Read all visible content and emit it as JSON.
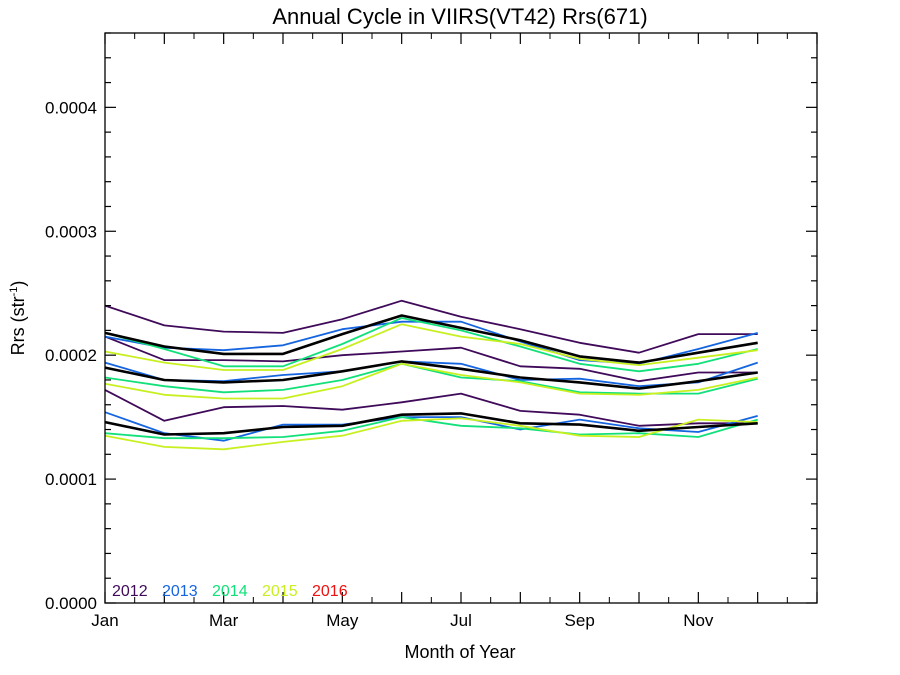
{
  "chart_data": {
    "type": "line",
    "title": "Annual Cycle in VIIRS(VT42) Rrs(671)",
    "xlabel": "Month of Year",
    "ylabel_main": "Rrs (str",
    "ylabel_sup": "-1",
    "ylabel_close": ")",
    "xlim": [
      1,
      13
    ],
    "ylim": [
      0,
      0.00046
    ],
    "x_ticks": [
      {
        "value": 1,
        "label": "Jan"
      },
      {
        "value": 3,
        "label": "Mar"
      },
      {
        "value": 5,
        "label": "May"
      },
      {
        "value": 7,
        "label": "Jul"
      },
      {
        "value": 9,
        "label": "Sep"
      },
      {
        "value": 11,
        "label": "Nov"
      }
    ],
    "y_ticks": [
      {
        "value": 0.0,
        "label": "0.0000"
      },
      {
        "value": 0.0001,
        "label": "0.0001"
      },
      {
        "value": 0.0002,
        "label": "0.0002"
      },
      {
        "value": 0.0003,
        "label": "0.0003"
      },
      {
        "value": 0.0004,
        "label": "0.0004"
      }
    ],
    "grid": false,
    "legend_placement": "bottom-left",
    "legend": [
      {
        "label": "2012",
        "color": "#3f0a5a"
      },
      {
        "label": "2013",
        "color": "#1565e0"
      },
      {
        "label": "2014",
        "color": "#12e07a"
      },
      {
        "label": "2015",
        "color": "#c8f020"
      },
      {
        "label": "2016",
        "color": "#ee1111"
      }
    ],
    "x": [
      1,
      2,
      3,
      4,
      5,
      6,
      7,
      8,
      9,
      10,
      11,
      12
    ],
    "series": [
      {
        "color": "#3f0a5a",
        "values": [
          0.00024,
          0.000224,
          0.000219,
          0.000218,
          0.000229,
          0.000244,
          0.000231,
          0.000221,
          0.00021,
          0.000202,
          0.000217,
          0.000217
        ]
      },
      {
        "color": "#3f0a5a",
        "values": [
          0.000215,
          0.000196,
          0.000196,
          0.000195,
          0.0002,
          0.000203,
          0.000206,
          0.000191,
          0.000189,
          0.000179,
          0.000186,
          0.000186
        ]
      },
      {
        "color": "#3f0a5a",
        "values": [
          0.000172,
          0.000147,
          0.000158,
          0.000159,
          0.000156,
          0.000162,
          0.000169,
          0.000155,
          0.000152,
          0.000143,
          0.000145,
          0.000145
        ]
      },
      {
        "color": "#1565e0",
        "values": [
          0.000215,
          0.000206,
          0.000204,
          0.000208,
          0.000221,
          0.000227,
          0.000227,
          0.000211,
          0.000196,
          0.000193,
          0.000205,
          0.000218
        ]
      },
      {
        "color": "#1565e0",
        "values": [
          0.000194,
          0.00018,
          0.000179,
          0.000184,
          0.000187,
          0.000195,
          0.000193,
          0.00018,
          0.000181,
          0.000175,
          0.000178,
          0.000194
        ]
      },
      {
        "color": "#1565e0",
        "values": [
          0.000154,
          0.000137,
          0.000131,
          0.000144,
          0.000144,
          0.00015,
          0.00015,
          0.00014,
          0.000148,
          0.000141,
          0.000138,
          0.000151
        ]
      },
      {
        "color": "#12e07a",
        "values": [
          0.000218,
          0.000205,
          0.000191,
          0.000191,
          0.000209,
          0.00023,
          0.00022,
          0.000207,
          0.000193,
          0.000187,
          0.000193,
          0.000205
        ]
      },
      {
        "color": "#12e07a",
        "values": [
          0.000182,
          0.000175,
          0.00017,
          0.000172,
          0.00018,
          0.000193,
          0.000182,
          0.000179,
          0.00017,
          0.000169,
          0.000169,
          0.000181
        ]
      },
      {
        "color": "#12e07a",
        "values": [
          0.000137,
          0.000133,
          0.000133,
          0.000134,
          0.000139,
          0.00015,
          0.000143,
          0.000141,
          0.000136,
          0.000137,
          0.000134,
          0.000148
        ]
      },
      {
        "color": "#c8f020",
        "values": [
          0.000203,
          0.000194,
          0.000188,
          0.000188,
          0.000205,
          0.000225,
          0.000215,
          0.000209,
          0.000197,
          0.000192,
          0.000198,
          0.000204
        ]
      },
      {
        "color": "#c8f020",
        "values": [
          0.000177,
          0.000168,
          0.000165,
          0.000165,
          0.000175,
          0.000193,
          0.000184,
          0.000178,
          0.000169,
          0.000168,
          0.000172,
          0.000182
        ]
      },
      {
        "color": "#c8f020",
        "values": [
          0.000135,
          0.000126,
          0.000124,
          0.00013,
          0.000135,
          0.000147,
          0.000149,
          0.000143,
          0.000135,
          0.000134,
          0.000148,
          0.000146
        ]
      },
      {
        "color": "#000000",
        "width": 2.6,
        "values": [
          0.000218,
          0.000207,
          0.000201,
          0.000201,
          0.000217,
          0.000232,
          0.000222,
          0.000212,
          0.000199,
          0.000194,
          0.000202,
          0.00021
        ]
      },
      {
        "color": "#000000",
        "width": 2.6,
        "values": [
          0.00019,
          0.00018,
          0.000178,
          0.00018,
          0.000187,
          0.000195,
          0.000189,
          0.000182,
          0.000178,
          0.000173,
          0.000179,
          0.000186
        ]
      },
      {
        "color": "#000000",
        "width": 2.6,
        "values": [
          0.000146,
          0.000136,
          0.000137,
          0.000142,
          0.000143,
          0.000152,
          0.000153,
          0.000145,
          0.000144,
          0.000139,
          0.000142,
          0.000145
        ]
      }
    ]
  }
}
